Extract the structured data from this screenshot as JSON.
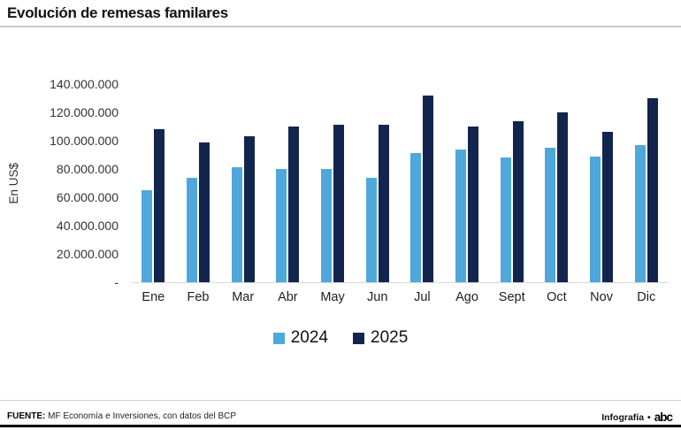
{
  "header": {
    "title": "Evolución de remesas familares"
  },
  "chart_data": {
    "type": "bar",
    "title": "Evolución de remesas familares",
    "xlabel": "",
    "ylabel": "En US$",
    "categories": [
      "Ene",
      "Feb",
      "Mar",
      "Abr",
      "May",
      "Jun",
      "Jul",
      "Ago",
      "Sept",
      "Oct",
      "Nov",
      "Dic"
    ],
    "series": [
      {
        "name": "2024",
        "color": "#4fa8db",
        "values": [
          65000000,
          74000000,
          81000000,
          80000000,
          80000000,
          74000000,
          91000000,
          94000000,
          88000000,
          95000000,
          89000000,
          97000000
        ]
      },
      {
        "name": "2025",
        "color": "#13254e",
        "values": [
          108000000,
          99000000,
          103000000,
          110000000,
          111000000,
          111000000,
          132000000,
          110000000,
          114000000,
          120000000,
          106000000,
          130000000
        ]
      }
    ],
    "ylim": [
      0,
      140000000
    ],
    "y_tick_step": 20000000,
    "y_tick_labels_bottom_to_top": [
      "-",
      "20.000.000",
      "40.000.000",
      "60.000.000",
      "80.000.000",
      "100.000.000",
      "120.000.000",
      "140.000.000"
    ],
    "grid": false,
    "legend_position": "bottom"
  },
  "legend": {
    "items": [
      {
        "label": "2024",
        "color": "#4fa8db"
      },
      {
        "label": "2025",
        "color": "#13254e"
      }
    ]
  },
  "footer": {
    "source_label": "FUENTE:",
    "source_text": " MF Economía e Inversiones, con datos del BCP",
    "credit": "Infografía",
    "bullet": "•",
    "logo": "abc"
  }
}
